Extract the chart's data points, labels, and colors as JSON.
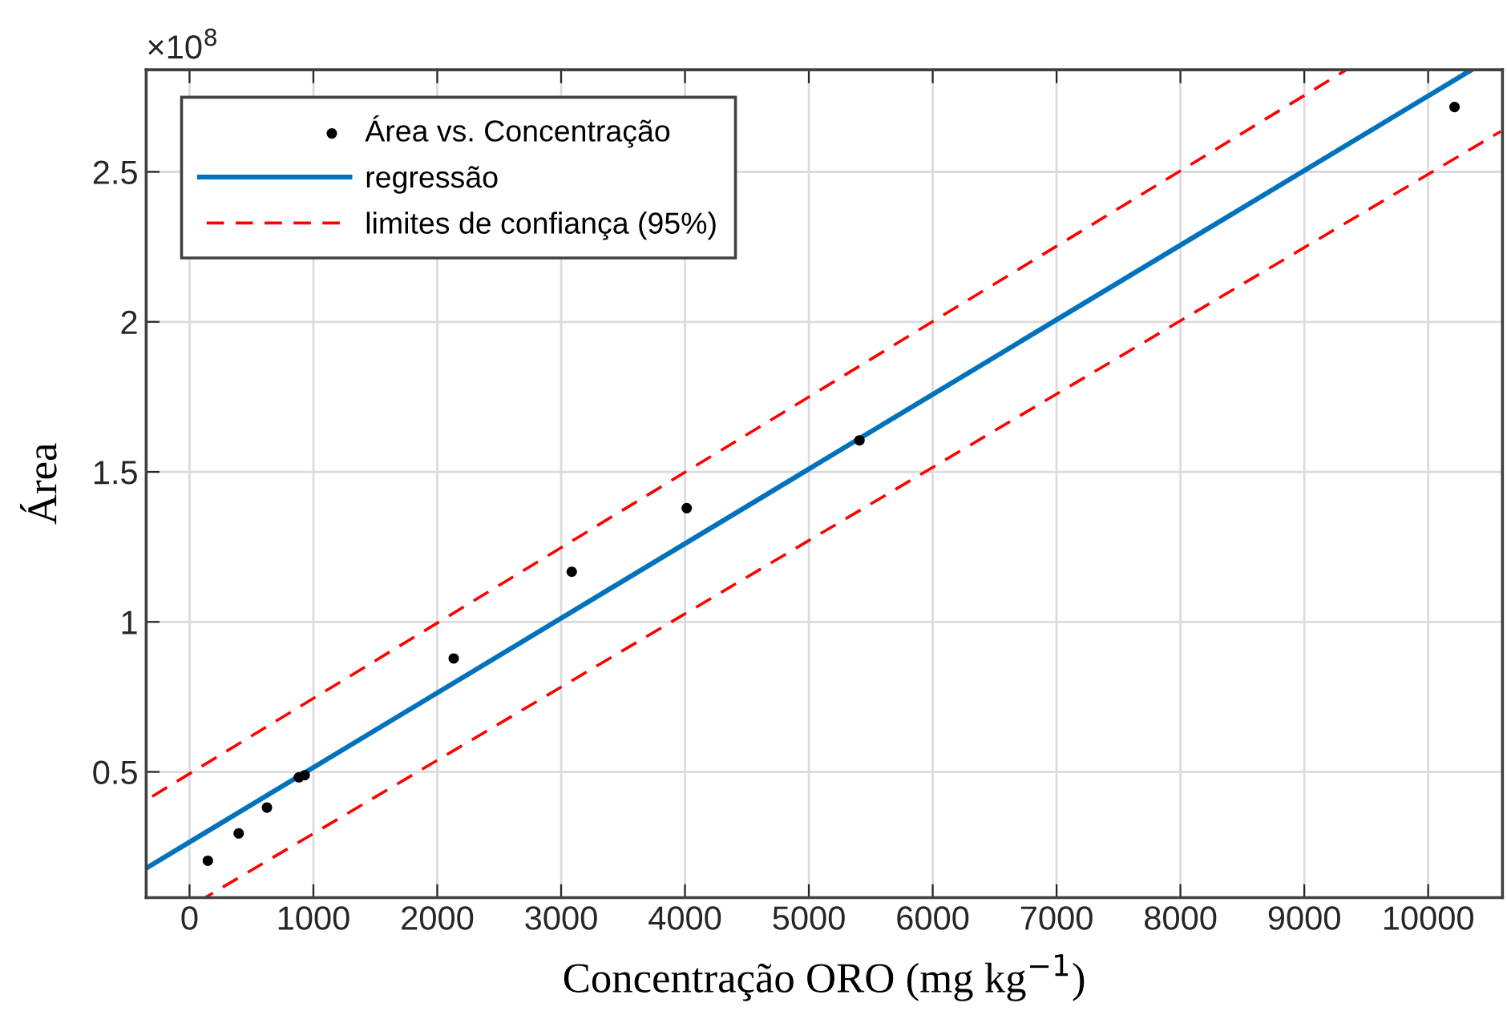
{
  "chart_data": {
    "type": "scatter",
    "xlabel": "Concentração ORO (mg kg$^{−1}$)",
    "ylabel": "Área",
    "annotations": [
      "×10$^{8}$"
    ],
    "series": [
      {
        "name": "Área vs. Concentração",
        "color": "#000000",
        "marker": "circle",
        "x": [
          148,
          397,
          625,
          883,
          930,
          2133,
          3086,
          4014,
          5409,
          10213
        ],
        "values": [
          0.204,
          0.295,
          0.381,
          0.482,
          0.489,
          0.878,
          1.167,
          1.379,
          1.605,
          2.716
        ]
      },
      {
        "name": "regressão",
        "type": "line",
        "color": "#0072bd",
        "line_style": "solid",
        "x": [
          -350,
          10350
        ],
        "values": [
          0.179,
          2.84
        ]
      },
      {
        "name": "limites de confiança (95%)",
        "type": "line",
        "color": "#ff0000",
        "line_style": "dashed",
        "x": [
          -350,
          9340
        ],
        "values": [
          0.406,
          2.84
        ]
      },
      {
        "type": "line",
        "color": "#ff0000",
        "line_style": "dashed",
        "x": [
          126,
          10586
        ],
        "values": [
          0.081,
          2.635
        ]
      }
    ],
    "xlim": [
      -350,
      10600
    ],
    "ylim": [
      0.081,
      2.84
    ],
    "xticks": [
      0,
      1000,
      2000,
      3000,
      4000,
      5000,
      6000,
      7000,
      8000,
      9000,
      10000
    ],
    "yticks": [
      0.5,
      1,
      1.5,
      2,
      2.5
    ],
    "grid": true,
    "legend": "top left"
  }
}
